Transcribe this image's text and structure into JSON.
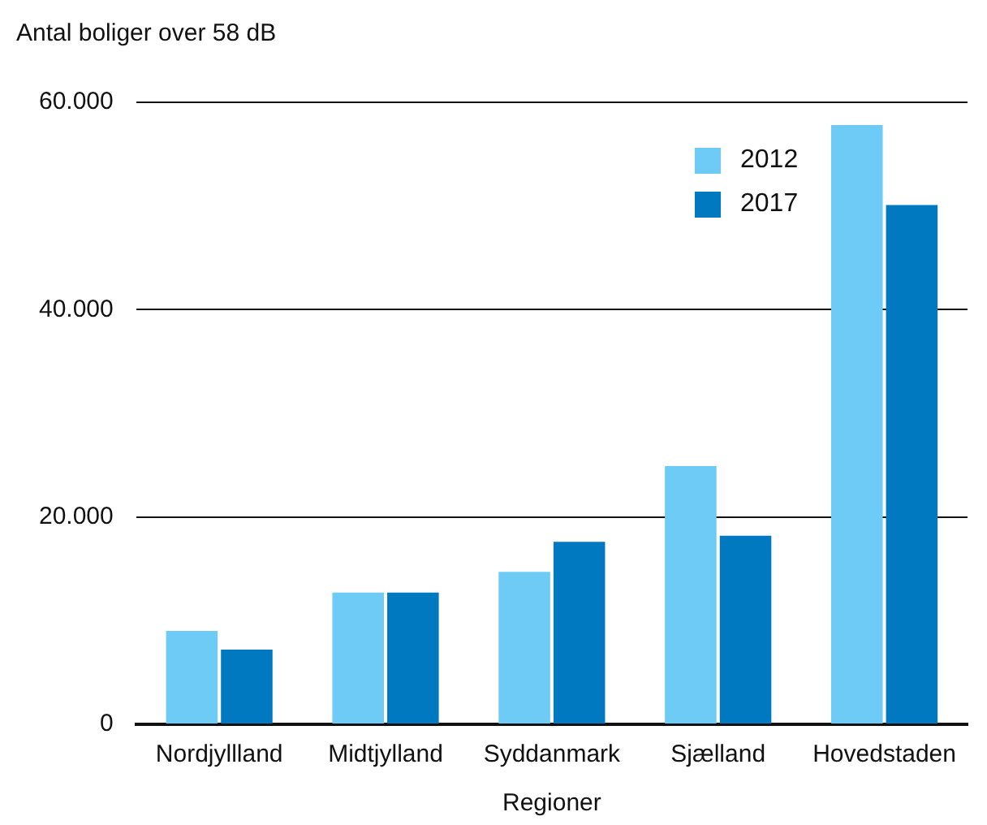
{
  "chart_data": {
    "type": "bar",
    "ylabel": "Antal boliger over 58 dB",
    "xlabel": "Regioner",
    "categories": [
      "Nordjyllland",
      "Midtjylland",
      "Syddanmark",
      "Sjælland",
      "Hovedstaden"
    ],
    "series": [
      {
        "name": "2012",
        "color": "#6ecbf5",
        "values": [
          9000,
          12700,
          14700,
          24900,
          57800
        ]
      },
      {
        "name": "2017",
        "color": "#0079c1",
        "values": [
          7200,
          12700,
          17600,
          18200,
          50100
        ]
      }
    ],
    "ylim": [
      0,
      60000
    ],
    "yticks": [
      {
        "value": 0,
        "label": "0"
      },
      {
        "value": 20000,
        "label": "20.000"
      },
      {
        "value": 40000,
        "label": "40.000"
      },
      {
        "value": 60000,
        "label": "60.000"
      }
    ],
    "grid": "y",
    "legend": "top right"
  }
}
